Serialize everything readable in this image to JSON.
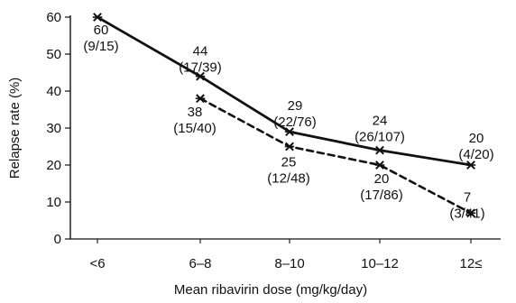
{
  "chart_data": {
    "type": "line",
    "title": "",
    "xlabel": "Mean ribavirin dose (mg/kg/day)",
    "ylabel": "Relapse rate (%)",
    "categories": [
      "<6",
      "6–8",
      "8–10",
      "10–12",
      "12≤"
    ],
    "ylim": [
      0,
      60
    ],
    "yticks": [
      0,
      10,
      20,
      30,
      40,
      50,
      60
    ],
    "grid": false,
    "legend": "none",
    "series": [
      {
        "style": "solid",
        "color": "#111111",
        "values": [
          60,
          44,
          29,
          24,
          20
        ],
        "labels": [
          {
            "value": "60",
            "count": "(9/15)"
          },
          {
            "value": "44",
            "count": "(17/39)"
          },
          {
            "value": "29",
            "count": "(22/76)"
          },
          {
            "value": "24",
            "count": "(26/107)"
          },
          {
            "value": "20",
            "count": "(4/20)"
          }
        ]
      },
      {
        "style": "dashed",
        "color": "#111111",
        "values": [
          null,
          38,
          25,
          20,
          7
        ],
        "labels": [
          null,
          {
            "value": "38",
            "count": "(15/40)"
          },
          {
            "value": "25",
            "count": "(12/48)"
          },
          {
            "value": "20",
            "count": "(17/86)"
          },
          {
            "value": "7",
            "count": "(3/41)"
          }
        ]
      }
    ]
  }
}
